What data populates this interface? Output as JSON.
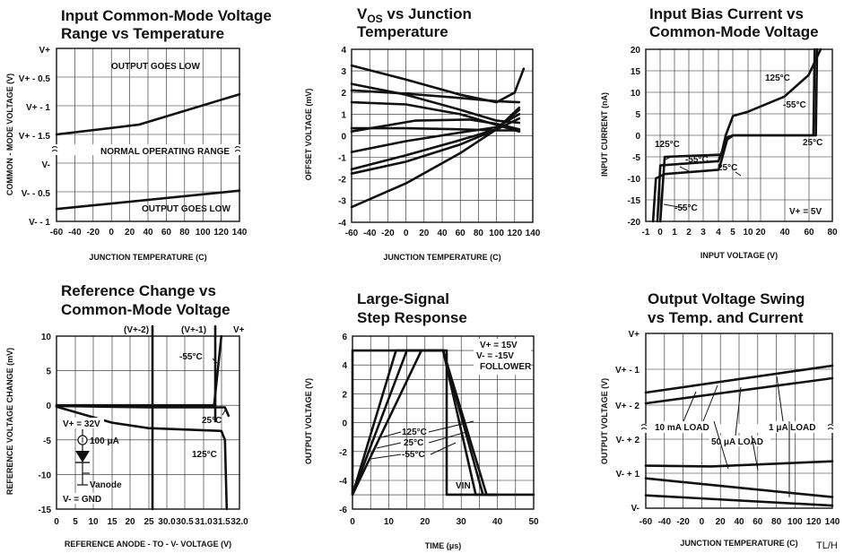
{
  "footer": "TL/H",
  "chart_data": [
    {
      "id": "cm",
      "type": "line",
      "title": [
        "Input Common-Mode Voltage",
        "Range vs Temperature"
      ],
      "xlabel": "JUNCTION TEMPERATURE (C)",
      "ylabel": "COMMON - MODE VOLTAGE (V)",
      "xlim": [
        -60,
        140
      ],
      "x_ticks": [
        "-60",
        "-40",
        "-20",
        "0",
        "20",
        "40",
        "60",
        "80",
        "100",
        "120",
        "140"
      ],
      "upper_y_ticks": [
        "V+",
        "V+ - 0.5",
        "V+ - 1",
        "V+ - 1.5"
      ],
      "lower_y_ticks": [
        "V-",
        "V- - 0.5",
        "V- - 1"
      ],
      "series": [
        {
          "region": "upper",
          "x": [
            -60,
            30,
            140
          ],
          "y": [
            -1.5,
            -1.33,
            -0.8
          ]
        },
        {
          "region": "lower",
          "x": [
            -60,
            140
          ],
          "y": [
            -0.8,
            -0.48
          ]
        }
      ],
      "annotations": [
        "OUTPUT GOES LOW",
        "NORMAL OPERATING RANGE",
        "OUTPUT GOES LOW"
      ],
      "grid": true
    },
    {
      "id": "vos",
      "type": "line",
      "title": [
        "VOS vs Junction",
        "Temperature"
      ],
      "xlabel": "JUNCTION TEMPERATURE (C)",
      "ylabel": "OFFSET VOLTAGE (mV)",
      "xlim": [
        -60,
        140
      ],
      "ylim": [
        -4,
        4
      ],
      "x_ticks": [
        "-60",
        "-40",
        "-20",
        "0",
        "20",
        "40",
        "60",
        "80",
        "100",
        "120",
        "140"
      ],
      "y_ticks": [
        "4",
        "3",
        "2",
        "1",
        "0",
        "-1",
        "-2",
        "-3",
        "-4"
      ],
      "series": [
        {
          "x": [
            -60,
            0,
            60,
            100,
            120,
            130
          ],
          "y": [
            3.25,
            2.6,
            1.9,
            1.55,
            2.0,
            3.1
          ]
        },
        {
          "x": [
            -60,
            0,
            60,
            100,
            125
          ],
          "y": [
            2.4,
            1.9,
            1.2,
            0.7,
            0.6
          ]
        },
        {
          "x": [
            -60,
            0,
            60,
            100,
            125
          ],
          "y": [
            2.1,
            1.95,
            1.75,
            1.6,
            1.55
          ]
        },
        {
          "x": [
            -60,
            0,
            60,
            100,
            125
          ],
          "y": [
            1.55,
            1.45,
            1.0,
            0.5,
            0.2
          ]
        },
        {
          "x": [
            -60,
            10,
            70,
            100,
            125
          ],
          "y": [
            0.2,
            0.7,
            0.75,
            0.55,
            0.3
          ]
        },
        {
          "x": [
            -60,
            0,
            60,
            100,
            125
          ],
          "y": [
            0.35,
            0.35,
            0.3,
            0.25,
            0.25
          ]
        },
        {
          "x": [
            -60,
            0,
            60,
            100,
            125
          ],
          "y": [
            -0.75,
            -0.25,
            0.15,
            0.4,
            1.0
          ]
        },
        {
          "x": [
            -60,
            0,
            60,
            100,
            125
          ],
          "y": [
            -1.55,
            -0.9,
            -0.2,
            0.3,
            0.8
          ]
        },
        {
          "x": [
            -60,
            0,
            60,
            100,
            125
          ],
          "y": [
            -1.75,
            -1.2,
            -0.4,
            0.3,
            1.3
          ]
        },
        {
          "x": [
            -60,
            0,
            60,
            100,
            125
          ],
          "y": [
            -3.3,
            -2.2,
            -0.8,
            0.3,
            1.2
          ]
        }
      ],
      "grid": true
    },
    {
      "id": "ib",
      "type": "line",
      "title": [
        "Input Bias Current vs",
        "Common-Mode Voltage"
      ],
      "xlabel": "INPUT VOLTAGE (V)",
      "ylabel": "INPUT CURRENT (nA)",
      "ylim": [
        -20,
        20
      ],
      "x_ticks": [
        "-1",
        "0",
        "1",
        "2",
        "3",
        "4",
        "5",
        "10",
        "20",
        "40",
        "60",
        "80"
      ],
      "y_ticks": [
        "20",
        "15",
        "10",
        "5",
        "0",
        "-5",
        "-10",
        "-15",
        "-20"
      ],
      "x_scale": "piecewise: -1..5 then 10..80",
      "series": [
        {
          "name": "125°C",
          "x": [
            0.0,
            0.3,
            4.2,
            4.5,
            5.0,
            10,
            40,
            60,
            70
          ],
          "y": [
            -20,
            -5,
            -4.5,
            0,
            4.5,
            5.5,
            9,
            14,
            20
          ]
        },
        {
          "name": "-55°C",
          "x": [
            -0.5,
            -0.3,
            0.3,
            4.0,
            4.2,
            4.6,
            5.0,
            64,
            65
          ],
          "y": [
            -20,
            -10,
            -9,
            -8,
            -6,
            -1,
            0,
            0,
            20
          ]
        },
        {
          "name": "25°C",
          "x": [
            -0.2,
            0.0,
            4.0,
            4.6,
            5.0,
            66,
            67
          ],
          "y": [
            -20,
            -7,
            -6,
            -0.5,
            0,
            0,
            20
          ]
        }
      ],
      "annotations": [
        "125°C",
        "-55°C",
        "25°C",
        "125°C",
        "-55°C",
        "25°C",
        "-55°C",
        "V+ = 5V"
      ],
      "grid": true
    },
    {
      "id": "ref",
      "type": "line",
      "title": [
        "Reference Change vs",
        "Common-Mode Voltage"
      ],
      "xlabel": "REFERENCE ANODE - TO - V- VOLTAGE (V)",
      "ylabel": "REFERENCE VOLTAGE CHANGE (mV)",
      "ylim": [
        -15,
        10
      ],
      "x_ticks": [
        "0",
        "5",
        "10",
        "15",
        "20",
        "25",
        "30.0",
        "30.5",
        "31.0",
        "31.5",
        "32.0"
      ],
      "y_ticks": [
        "10",
        "5",
        "0",
        "-5",
        "-10",
        "-15"
      ],
      "top_labels": [
        "(V+-2)",
        "(V+-1)",
        "V+"
      ],
      "series": [
        {
          "name": "-55°C",
          "x": [
            0,
            25,
            31.3,
            31.5
          ],
          "y": [
            0,
            0,
            0,
            10
          ]
        },
        {
          "name": "25°C",
          "x": [
            0,
            25,
            31.4,
            31.6,
            31.7
          ],
          "y": [
            -0.1,
            -0.3,
            -0.3,
            -0.3,
            -1.5
          ]
        },
        {
          "name": "125°C",
          "x": [
            0,
            15,
            25,
            31.5,
            31.6,
            31.65
          ],
          "y": [
            -0.2,
            -2.5,
            -3.3,
            -3.7,
            -5,
            -15
          ]
        }
      ],
      "annotations": [
        "-55°C",
        "25°C",
        "125°C",
        "V+ = 32V",
        "100 μA",
        "Vanode",
        "V- = GND"
      ],
      "grid": true
    },
    {
      "id": "step",
      "type": "line",
      "title": [
        "Large-Signal",
        "Step Response"
      ],
      "xlabel": "TIME (μs)",
      "ylabel": "OUTPUT VOLTAGE (V)",
      "xlim": [
        0,
        50
      ],
      "ylim": [
        -6,
        6
      ],
      "x_ticks": [
        "0",
        "10",
        "20",
        "30",
        "40",
        "50"
      ],
      "y_ticks": [
        "6",
        "4",
        "2",
        "0",
        "-2",
        "-4",
        "-6"
      ],
      "series": [
        {
          "name": "VIN",
          "x": [
            0,
            0,
            26,
            26,
            50
          ],
          "y": [
            -5,
            5,
            5,
            -5,
            -5
          ]
        },
        {
          "name": "125°C",
          "x": [
            0,
            12,
            25,
            37,
            40
          ],
          "y": [
            -5,
            5,
            5,
            -5,
            -5
          ]
        },
        {
          "name": "25°C",
          "x": [
            0,
            15,
            25,
            36,
            40
          ],
          "y": [
            -5,
            5,
            5,
            -5,
            -5
          ]
        },
        {
          "name": "-55°C",
          "x": [
            0,
            19,
            25,
            34,
            40
          ],
          "y": [
            -5,
            5,
            5,
            -5,
            -5
          ]
        }
      ],
      "annotations": [
        "V+ = 15V",
        "V- = -15V",
        "FOLLOWER",
        "125°C",
        "25°C",
        "-55°C",
        "VIN"
      ],
      "grid": true
    },
    {
      "id": "swing",
      "type": "line",
      "title": [
        "Output Voltage Swing",
        "vs Temp. and Current"
      ],
      "xlabel": "JUNCTION TEMPERATURE (C)",
      "ylabel": "OUTPUT VOLTAGE (V)",
      "xlim": [
        -60,
        140
      ],
      "x_ticks": [
        "-60",
        "-40",
        "-20",
        "0",
        "20",
        "40",
        "60",
        "80",
        "100",
        "120",
        "140"
      ],
      "upper_y_ticks": [
        "V+",
        "V+ - 1",
        "V+ - 2"
      ],
      "lower_y_ticks": [
        "V- + 2",
        "V- + 1",
        "V-"
      ],
      "series": [
        {
          "name": "1 μA LOAD (upper)",
          "region": "upper",
          "x": [
            -60,
            140
          ],
          "y": [
            -1.65,
            -0.9
          ]
        },
        {
          "name": "10 mA LOAD (upper)",
          "region": "upper",
          "x": [
            -60,
            140
          ],
          "y": [
            -1.95,
            -1.25
          ]
        },
        {
          "name": "10 mA LOAD (lower)",
          "region": "lower",
          "x": [
            -60,
            10,
            140
          ],
          "y": [
            1.22,
            1.2,
            1.35
          ]
        },
        {
          "name": "50 μA LOAD (lower)",
          "region": "lower",
          "x": [
            -60,
            140
          ],
          "y": [
            0.85,
            0.3
          ]
        },
        {
          "name": "1 μA LOAD (lower)",
          "region": "lower",
          "x": [
            -60,
            140
          ],
          "y": [
            0.35,
            0.05
          ]
        }
      ],
      "annotations": [
        "10 mA LOAD",
        "50 μA LOAD",
        "1 μA LOAD"
      ],
      "grid": true
    }
  ]
}
